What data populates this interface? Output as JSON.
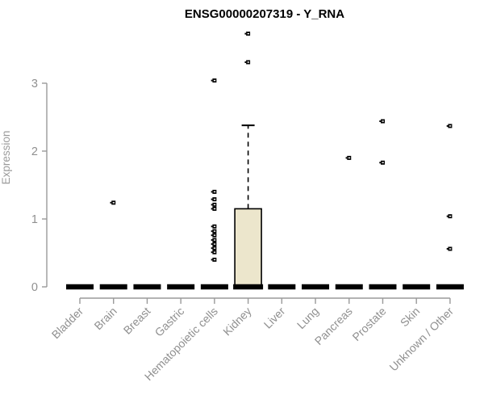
{
  "page_title": "ENSG00000207319 - Y_RNA",
  "colors": {
    "background": "#ffffff",
    "title_text": "#000000",
    "axis_line": "#9a9a9a",
    "axis_text": "#909090",
    "box_fill": "#ece6cc",
    "box_stroke": "#000000",
    "point_color": "#000000"
  },
  "chart_data": {
    "type": "box",
    "title": "ENSG00000207319 - Y_RNA",
    "xlabel": "",
    "ylabel": "Expression",
    "ylim": [
      0,
      3.9
    ],
    "yticks": [
      0,
      1,
      2,
      3
    ],
    "grid": false,
    "legend": false,
    "categories": [
      "Bladder",
      "Brain",
      "Breast",
      "Gastric",
      "Hematopoietic cells",
      "Kidney",
      "Liver",
      "Lung",
      "Pancreas",
      "Prostate",
      "Skin",
      "Unknown / Other"
    ],
    "boxes": [
      {
        "category": "Bladder",
        "q1": 0,
        "median": 0,
        "q3": 0,
        "whisker_low": 0,
        "whisker_high": 0,
        "outliers": []
      },
      {
        "category": "Brain",
        "q1": 0,
        "median": 0,
        "q3": 0,
        "whisker_low": 0,
        "whisker_high": 0,
        "outliers": [
          1.24
        ]
      },
      {
        "category": "Breast",
        "q1": 0,
        "median": 0,
        "q3": 0,
        "whisker_low": 0,
        "whisker_high": 0,
        "outliers": []
      },
      {
        "category": "Gastric",
        "q1": 0,
        "median": 0,
        "q3": 0,
        "whisker_low": 0,
        "whisker_high": 0,
        "outliers": []
      },
      {
        "category": "Hematopoietic cells",
        "q1": 0,
        "median": 0,
        "q3": 0,
        "whisker_low": 0,
        "whisker_high": 0,
        "outliers": [
          3.04,
          1.4,
          1.29,
          1.21,
          1.15,
          0.89,
          0.82,
          0.76,
          0.69,
          0.63,
          0.57,
          0.51,
          0.4
        ]
      },
      {
        "category": "Kidney",
        "q1": 0,
        "median": 0,
        "q3": 1.15,
        "whisker_low": 0,
        "whisker_high": 2.38,
        "outliers": [
          3.73,
          3.31
        ]
      },
      {
        "category": "Liver",
        "q1": 0,
        "median": 0,
        "q3": 0,
        "whisker_low": 0,
        "whisker_high": 0,
        "outliers": []
      },
      {
        "category": "Lung",
        "q1": 0,
        "median": 0,
        "q3": 0,
        "whisker_low": 0,
        "whisker_high": 0,
        "outliers": []
      },
      {
        "category": "Pancreas",
        "q1": 0,
        "median": 0,
        "q3": 0,
        "whisker_low": 0,
        "whisker_high": 0,
        "outliers": [
          1.9
        ]
      },
      {
        "category": "Prostate",
        "q1": 0,
        "median": 0,
        "q3": 0,
        "whisker_low": 0,
        "whisker_high": 0,
        "outliers": [
          2.44,
          1.83
        ]
      },
      {
        "category": "Skin",
        "q1": 0,
        "median": 0,
        "q3": 0,
        "whisker_low": 0,
        "whisker_high": 0,
        "outliers": []
      },
      {
        "category": "Unknown / Other",
        "q1": 0,
        "median": 0,
        "q3": 0,
        "whisker_low": 0,
        "whisker_high": 0,
        "outliers": [
          2.37,
          1.04,
          0.56
        ]
      }
    ]
  }
}
